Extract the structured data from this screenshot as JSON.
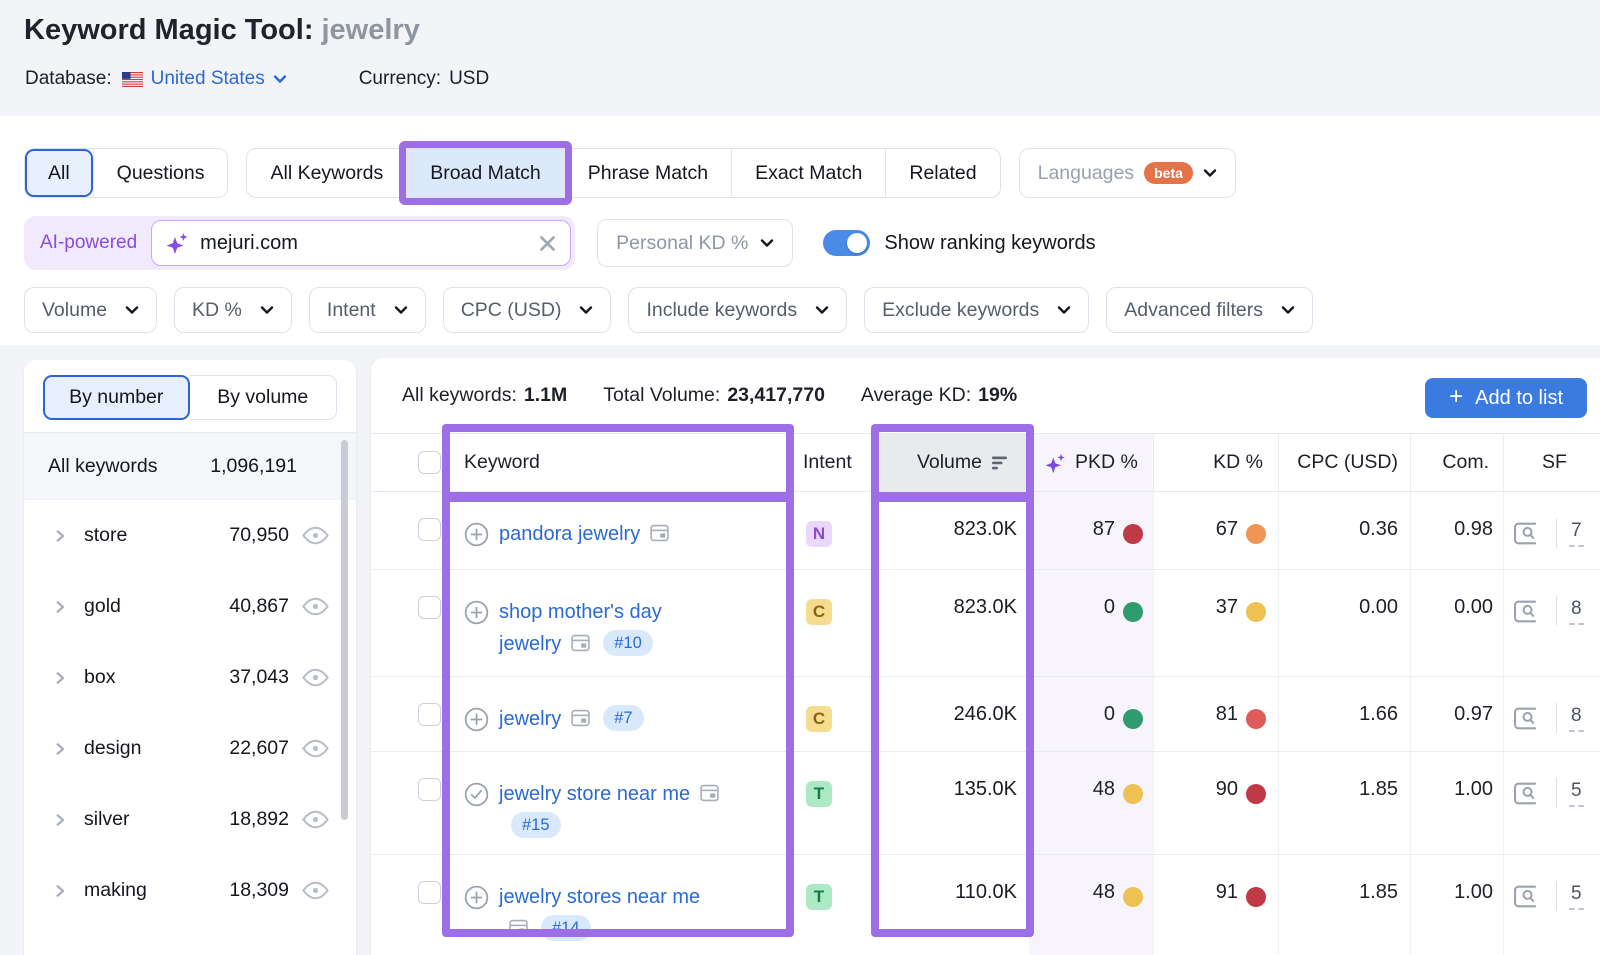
{
  "colors": {
    "annotation_purple": "#9d6ee6",
    "link_blue": "#2b6ad4",
    "button_blue": "#3b7be0",
    "dot_red": "#bf3a46",
    "dot_red_bright": "#e05b5b",
    "dot_orange": "#ef9654",
    "dot_yellow": "#eec153",
    "dot_green": "#2f9c70"
  },
  "header": {
    "title": "Keyword Magic Tool:",
    "query": "jewelry",
    "database_label": "Database:",
    "database_value": "United States",
    "currency_label": "Currency:",
    "currency_value": "USD"
  },
  "match_tabs": {
    "group_a": [
      {
        "label": "All",
        "selected": true
      },
      {
        "label": "Questions",
        "selected": false
      }
    ],
    "group_b": [
      {
        "label": "All Keywords",
        "selected": false
      },
      {
        "label": "Broad Match",
        "selected": true,
        "annotated": true
      },
      {
        "label": "Phrase Match",
        "selected": false
      },
      {
        "label": "Exact Match",
        "selected": false
      },
      {
        "label": "Related",
        "selected": false
      }
    ],
    "languages_label": "Languages",
    "languages_badge": "beta"
  },
  "search": {
    "ai_badge": "AI-powered",
    "value": "mejuri.com",
    "kd_selector": "Personal KD %",
    "toggle_label": "Show ranking keywords",
    "toggle_on": true
  },
  "filters": [
    "Volume",
    "KD %",
    "Intent",
    "CPC (USD)",
    "Include keywords",
    "Exclude keywords",
    "Advanced filters"
  ],
  "sidebar": {
    "tabs": [
      {
        "label": "By number",
        "selected": true
      },
      {
        "label": "By volume",
        "selected": false
      }
    ],
    "all_row": {
      "label": "All keywords",
      "count": "1,096,191"
    },
    "items": [
      {
        "label": "store",
        "count": "70,950"
      },
      {
        "label": "gold",
        "count": "40,867"
      },
      {
        "label": "box",
        "count": "37,043"
      },
      {
        "label": "design",
        "count": "22,607"
      },
      {
        "label": "silver",
        "count": "18,892"
      },
      {
        "label": "making",
        "count": "18,309"
      }
    ]
  },
  "table": {
    "summary": {
      "all_keywords_label": "All keywords:",
      "all_keywords_value": "1.1M",
      "total_volume_label": "Total Volume:",
      "total_volume_value": "23,417,770",
      "average_kd_label": "Average KD:",
      "average_kd_value": "19%"
    },
    "add_to_list": "Add to list",
    "columns": {
      "keyword": "Keyword",
      "intent": "Intent",
      "volume": "Volume",
      "pkd": "PKD %",
      "kd": "KD %",
      "cpc": "CPC (USD)",
      "com": "Com.",
      "sf": "SF"
    },
    "rows": [
      {
        "keyword": "pandora jewelry",
        "add_icon": "plus",
        "position": null,
        "intent": "N",
        "intent_type": "navigational",
        "volume": "823.0K",
        "pkd": "87",
        "pkd_level": "red",
        "kd": "67",
        "kd_level": "orange",
        "cpc": "0.36",
        "com": "0.98",
        "sf": "7"
      },
      {
        "keyword": "shop mother's day jewelry",
        "add_icon": "plus",
        "position": "#10",
        "intent": "C",
        "intent_type": "commercial",
        "volume": "823.0K",
        "pkd": "0",
        "pkd_level": "green",
        "kd": "37",
        "kd_level": "yellow",
        "cpc": "0.00",
        "com": "0.00",
        "sf": "8"
      },
      {
        "keyword": "jewelry",
        "add_icon": "plus",
        "position": "#7",
        "intent": "C",
        "intent_type": "commercial",
        "volume": "246.0K",
        "pkd": "0",
        "pkd_level": "green",
        "kd": "81",
        "kd_level": "red_bright",
        "cpc": "1.66",
        "com": "0.97",
        "sf": "8"
      },
      {
        "keyword": "jewelry store near me",
        "add_icon": "check",
        "position": "#15",
        "intent": "T",
        "intent_type": "transactional",
        "volume": "135.0K",
        "pkd": "48",
        "pkd_level": "yellow",
        "kd": "90",
        "kd_level": "red",
        "cpc": "1.85",
        "com": "1.00",
        "sf": "5"
      },
      {
        "keyword": "jewelry stores near me",
        "add_icon": "plus",
        "position": "#14",
        "intent": "T",
        "intent_type": "transactional",
        "volume": "110.0K",
        "pkd": "48",
        "pkd_level": "yellow",
        "kd": "91",
        "kd_level": "red",
        "cpc": "1.85",
        "com": "1.00",
        "sf": "5"
      }
    ]
  }
}
